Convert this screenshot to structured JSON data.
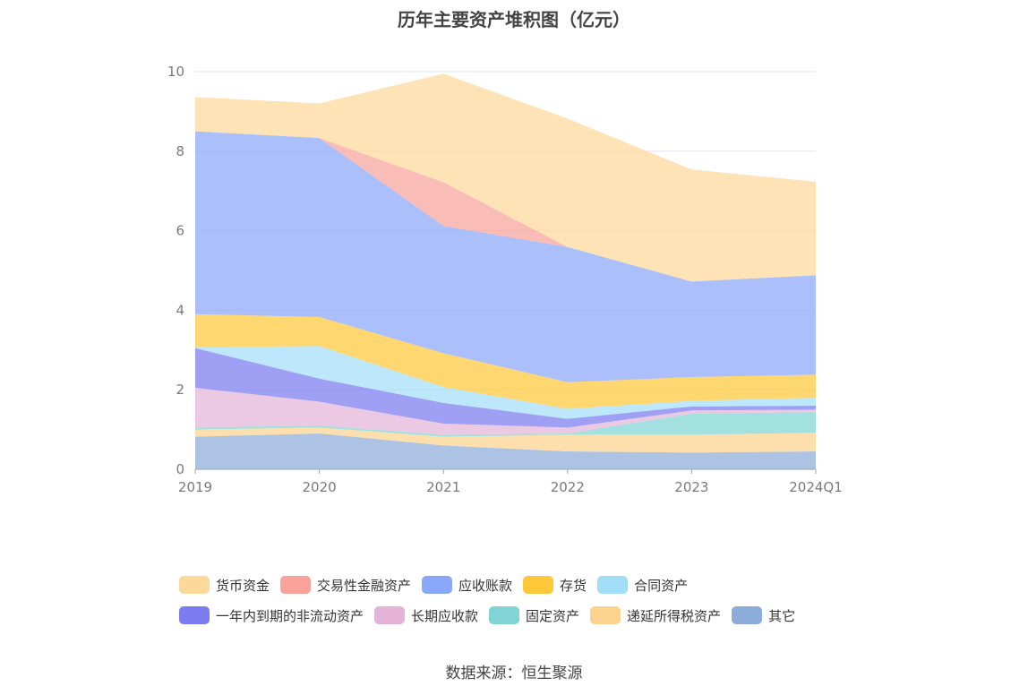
{
  "title": "历年主要资产堆积图（亿元）",
  "source": "数据来源：恒生聚源",
  "chart_data": {
    "type": "area",
    "stacked": true,
    "title": "历年主要资产堆积图（亿元）",
    "categories": [
      "2019",
      "2020",
      "2021",
      "2022",
      "2023",
      "2024Q1"
    ],
    "ylim": [
      0,
      10
    ],
    "yticks": [
      "0",
      "2",
      "4",
      "6",
      "8",
      "10"
    ],
    "grid": true,
    "legend_position": "bottom",
    "series": [
      {
        "name": "其它",
        "color": "#8eacd9",
        "values": [
          0.82,
          0.9,
          0.6,
          0.45,
          0.42,
          0.45
        ]
      },
      {
        "name": "递延所得税资产",
        "color": "#fcd28f",
        "values": [
          0.18,
          0.15,
          0.22,
          0.42,
          0.45,
          0.47
        ]
      },
      {
        "name": "固定资产",
        "color": "#80d4d4",
        "values": [
          0.05,
          0.05,
          0.05,
          0.03,
          0.53,
          0.52
        ]
      },
      {
        "name": "长期应收款",
        "color": "#e4b4d8",
        "values": [
          1.0,
          0.6,
          0.28,
          0.15,
          0.08,
          0.06
        ]
      },
      {
        "name": "一年内到期的非流动资产",
        "color": "#7a7cf0",
        "values": [
          1.0,
          0.58,
          0.52,
          0.22,
          0.1,
          0.1
        ]
      },
      {
        "name": "合同资产",
        "color": "#a3def8",
        "values": [
          0.02,
          0.82,
          0.4,
          0.25,
          0.14,
          0.2
        ]
      },
      {
        "name": "存货",
        "color": "#ffc83a",
        "values": [
          0.83,
          0.73,
          0.85,
          0.67,
          0.6,
          0.58
        ]
      },
      {
        "name": "应收账款",
        "color": "#8aa8fa",
        "values": [
          4.6,
          4.5,
          3.2,
          3.4,
          2.4,
          2.5
        ]
      },
      {
        "name": "交易性金融资产",
        "color": "#f8a29a",
        "values": [
          0.0,
          0.0,
          1.1,
          0.0,
          0.0,
          0.0
        ]
      },
      {
        "name": "货币资金",
        "color": "#fdd89b",
        "values": [
          0.86,
          0.87,
          2.73,
          3.23,
          2.82,
          2.35
        ]
      }
    ]
  },
  "legend_rows": [
    [
      "货币资金",
      "交易性金融资产",
      "应收账款",
      "存货",
      "合同资产"
    ],
    [
      "一年内到期的非流动资产",
      "长期应收款",
      "固定资产",
      "递延所得税资产",
      "其它"
    ]
  ]
}
